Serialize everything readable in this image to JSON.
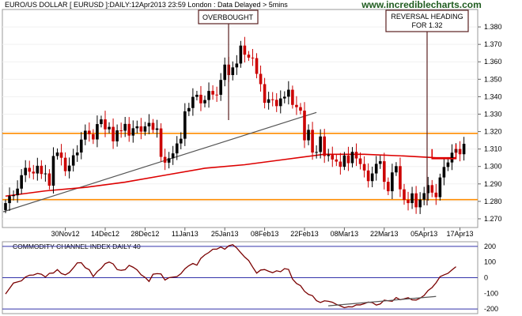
{
  "header": {
    "title": "EURO/US DOLLAR [ EURUSD ]:DAILY:12Apr2013 23:59 London : Data Delayed > 5mins",
    "watermark": "www.incrediblecharts.com"
  },
  "annotations": {
    "overbought": "OVERBOUGHT",
    "reversal_line1": "REVERSAL HEADING",
    "reversal_line2": "FOR 1.32"
  },
  "colors": {
    "up": "#000000",
    "down": "#cc0000",
    "ma": "#dd0000",
    "hline": "#ff8c00",
    "trend": "#555555",
    "cci": "#7a0000",
    "cci_band": "#3333aa"
  },
  "chart_data": [
    {
      "type": "candlestick",
      "title": "EURO/US DOLLAR [ EURUSD ]:DAILY:12Apr2013 23:59 London : Data Delayed > 5mins",
      "ylim": [
        1.265,
        1.39
      ],
      "y_ticks": [
        1.27,
        1.28,
        1.29,
        1.3,
        1.31,
        1.32,
        1.33,
        1.34,
        1.35,
        1.36,
        1.37,
        1.38
      ],
      "x_tick_labels": [
        "30Nov12",
        "14Dec12",
        "28Dec12",
        "11Jan13",
        "25Jan13",
        "08Feb13",
        "22Feb13",
        "08Mar13",
        "22Mar13",
        "05Apr13",
        "17Apr13"
      ],
      "x_tick_index": [
        15,
        25,
        35,
        45,
        55,
        65,
        75,
        85,
        95,
        105,
        114
      ],
      "horizontal_lines": [
        1.319,
        1.281
      ],
      "support_line_start": [
        0,
        1.274
      ],
      "support_line_end": [
        78,
        1.331
      ],
      "reversal_bracket_level": 1.3045,
      "close": [
        1.279,
        1.283,
        1.2835,
        1.2873,
        1.295,
        1.2992,
        1.297,
        1.296,
        1.3004,
        1.2957,
        1.296,
        1.289,
        1.306,
        1.308,
        1.305,
        1.2973,
        1.3005,
        1.3064,
        1.308,
        1.3154,
        1.3205,
        1.3185,
        1.3155,
        1.3243,
        1.327,
        1.3213,
        1.3227,
        1.3144,
        1.3207,
        1.3205,
        1.3244,
        1.3177,
        1.3219,
        1.323,
        1.32,
        1.323,
        1.325,
        1.321,
        1.3218,
        1.3055,
        1.3022,
        1.3047,
        1.3075,
        1.3132,
        1.3159,
        1.3316,
        1.3335,
        1.3399,
        1.3411,
        1.3362,
        1.3381,
        1.3433,
        1.3412,
        1.3411,
        1.3496,
        1.3584,
        1.3524,
        1.3568,
        1.359,
        1.3693,
        1.3641,
        1.3624,
        1.3621,
        1.3531,
        1.3472,
        1.3365,
        1.3385,
        1.3382,
        1.3346,
        1.339,
        1.34,
        1.344,
        1.3353,
        1.334,
        1.332,
        1.315,
        1.321,
        1.308,
        1.3083,
        1.3172,
        1.306,
        1.3066,
        1.304,
        1.3028,
        1.2998,
        1.3063,
        1.3019,
        1.3084,
        1.3046,
        1.3014,
        1.2977,
        1.2916,
        1.296,
        1.3015,
        1.303,
        1.2912,
        1.2858,
        1.2966,
        1.3002,
        1.2869,
        1.2808,
        1.279,
        1.2846,
        1.2766,
        1.281,
        1.2847,
        1.2893,
        1.285,
        1.2824,
        1.2937,
        1.2997,
        1.3023,
        1.3079,
        1.31,
        1.307,
        1.313
      ],
      "moving_average": {
        "days": [
          0,
          10,
          20,
          30,
          40,
          50,
          60,
          70,
          80,
          90,
          100,
          108,
          113
        ],
        "values": [
          1.283,
          1.286,
          1.288,
          1.291,
          1.295,
          1.299,
          1.301,
          1.304,
          1.307,
          1.307,
          1.306,
          1.305,
          1.305
        ]
      }
    },
    {
      "type": "line",
      "title": "COMMODITY CHANNEL INDEX DAILY 40",
      "ylim": [
        -230,
        230
      ],
      "y_ticks": [
        -200,
        -100,
        0,
        100,
        200
      ],
      "bands": [
        200,
        0,
        -200
      ],
      "values": [
        -104,
        -69,
        -34,
        -27,
        -20,
        4,
        16,
        17,
        27,
        22,
        4,
        28,
        30,
        52,
        27,
        18,
        33,
        62,
        95,
        96,
        64,
        51,
        7,
        39,
        60,
        90,
        100,
        88,
        52,
        47,
        51,
        79,
        67,
        50,
        19,
        2,
        -24,
        22,
        26,
        24,
        -15,
        0,
        4,
        7,
        26,
        57,
        77,
        91,
        80,
        124,
        146,
        161,
        182,
        183,
        196,
        182,
        204,
        211,
        190,
        160,
        132,
        110,
        68,
        29,
        49,
        52,
        41,
        32,
        44,
        38,
        58,
        53,
        -9,
        -37,
        -51,
        -87,
        -107,
        -115,
        -147,
        -159,
        -148,
        -151,
        -157,
        -171,
        -180,
        -192,
        -186,
        -187,
        -174,
        -174,
        -166,
        -156,
        -159,
        -175,
        -168,
        -144,
        -148,
        -151,
        -127,
        -141,
        -135,
        -128,
        -142,
        -143,
        -131,
        -114,
        -82,
        -63,
        -33,
        6,
        18,
        28,
        50,
        70
      ],
      "trend_line_start": [
        77,
        -180
      ],
      "trend_line_end": [
        108,
        -120
      ]
    }
  ]
}
